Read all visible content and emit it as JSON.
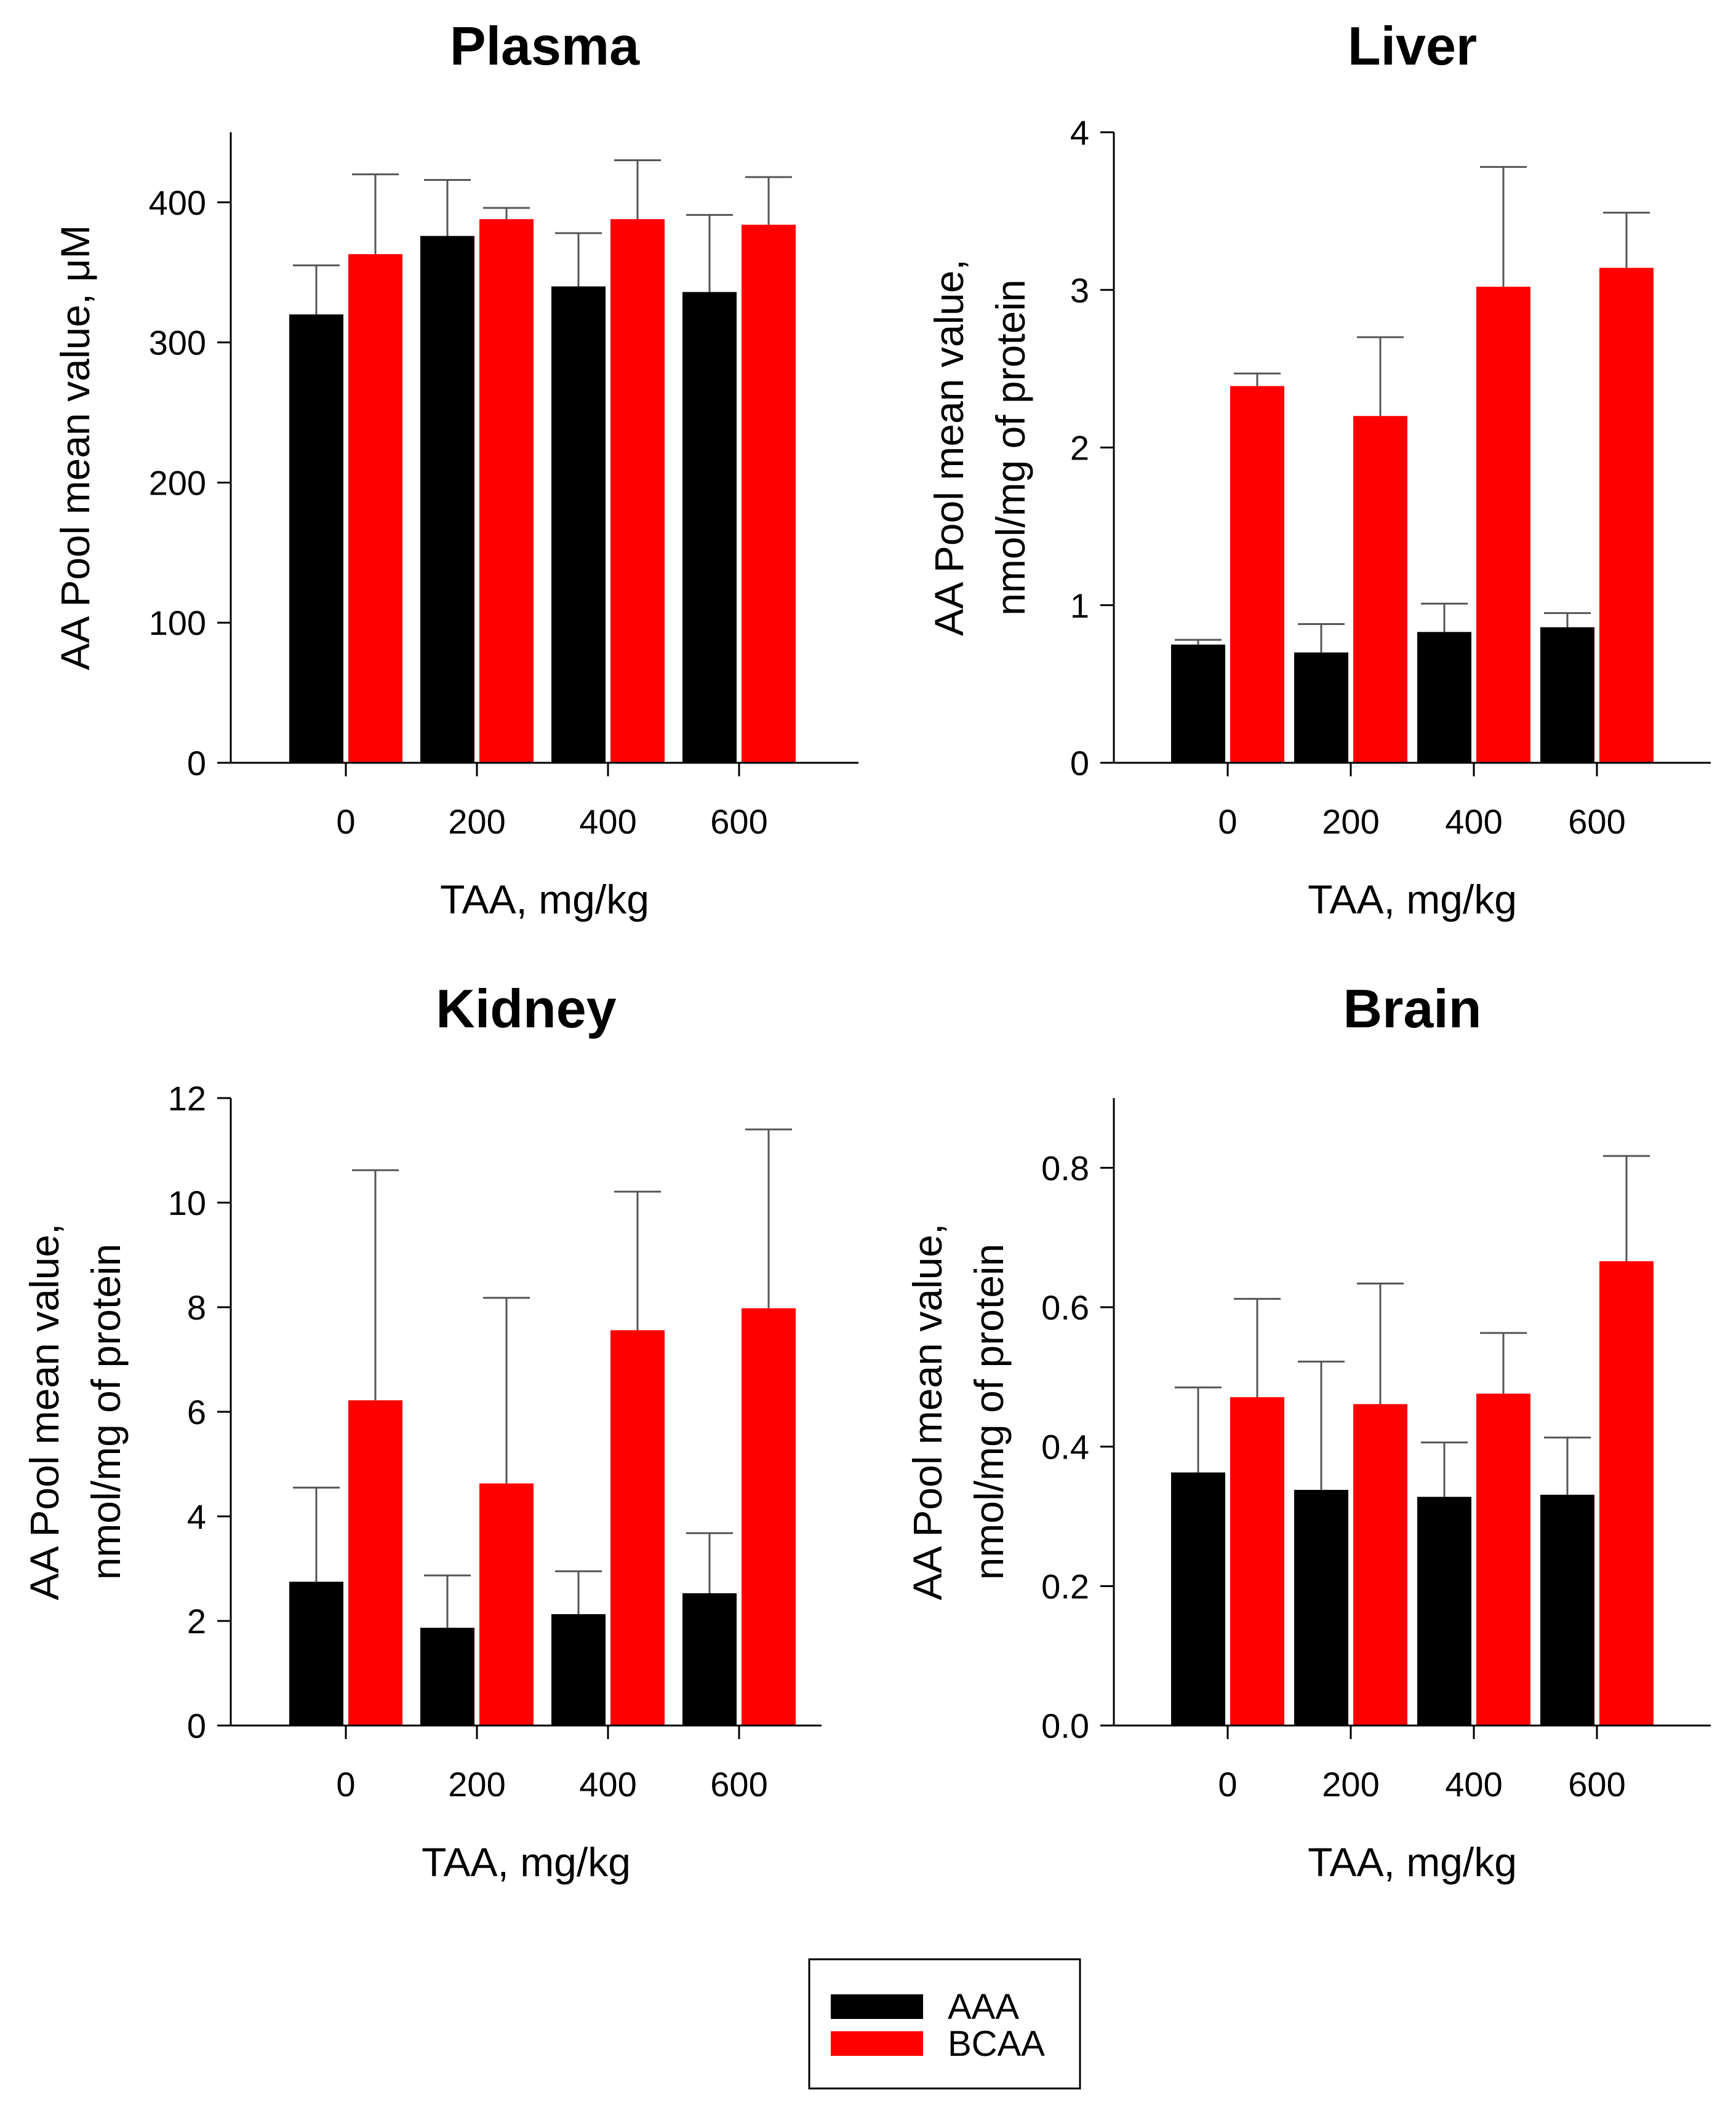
{
  "colors": {
    "AAA": "#000000",
    "BCAA": "#ff0000",
    "error_bar": "#555555",
    "axis": "#000000"
  },
  "legend": {
    "items": [
      {
        "name": "AAA",
        "color": "#000000"
      },
      {
        "name": "BCAA",
        "color": "#ff0000"
      }
    ]
  },
  "chart_data": [
    {
      "type": "bar",
      "title": "Plasma",
      "xlabel": "TAA, mg/kg",
      "ylabel": [
        "AA Pool mean value, μM"
      ],
      "categories": [
        "0",
        "200",
        "400",
        "600"
      ],
      "ylim": [
        0,
        450
      ],
      "yticks": [
        "0",
        "100",
        "200",
        "300",
        "400"
      ],
      "ytick_values": [
        0,
        100,
        200,
        300,
        400
      ],
      "series": [
        {
          "name": "AAA",
          "values": [
            320,
            376,
            340,
            336
          ],
          "errors": [
            35,
            40,
            38,
            55
          ]
        },
        {
          "name": "BCAA",
          "values": [
            363,
            388,
            388,
            384
          ],
          "errors": [
            57,
            8,
            42,
            34
          ]
        }
      ]
    },
    {
      "type": "bar",
      "title": "Liver",
      "xlabel": "TAA, mg/kg",
      "ylabel": [
        "AA Pool mean value,",
        "nmol/mg of protein"
      ],
      "categories": [
        "0",
        "200",
        "400",
        "600"
      ],
      "ylim": [
        0,
        4
      ],
      "yticks": [
        "0",
        "1",
        "2",
        "3",
        "4"
      ],
      "ytick_values": [
        0,
        1,
        2,
        3,
        4
      ],
      "series": [
        {
          "name": "AAA",
          "values": [
            0.75,
            0.7,
            0.83,
            0.86
          ],
          "errors": [
            0.03,
            0.18,
            0.18,
            0.09
          ]
        },
        {
          "name": "BCAA",
          "values": [
            2.39,
            2.2,
            3.02,
            3.14
          ],
          "errors": [
            0.08,
            0.5,
            0.76,
            0.35
          ]
        }
      ]
    },
    {
      "type": "bar",
      "title": "Kidney",
      "xlabel": "TAA, mg/kg",
      "ylabel": [
        "AA Pool mean value,",
        "nmol/mg of protein"
      ],
      "categories": [
        "0",
        "200",
        "400",
        "600"
      ],
      "ylim": [
        0,
        12
      ],
      "yticks": [
        "0",
        "2",
        "4",
        "6",
        "8",
        "10",
        "12"
      ],
      "ytick_values": [
        0,
        2,
        4,
        6,
        8,
        10,
        12
      ],
      "series": [
        {
          "name": "AAA",
          "values": [
            2.75,
            1.87,
            2.13,
            2.53
          ],
          "errors": [
            1.8,
            1.0,
            0.82,
            1.15
          ]
        },
        {
          "name": "BCAA",
          "values": [
            6.22,
            4.63,
            7.56,
            7.98
          ],
          "errors": [
            4.4,
            3.55,
            2.65,
            3.42
          ]
        }
      ]
    },
    {
      "type": "bar",
      "title": "Brain",
      "xlabel": "TAA, mg/kg",
      "ylabel": [
        "AA Pool mean value,",
        "nmol/mg of protein"
      ],
      "categories": [
        "0",
        "200",
        "400",
        "600"
      ],
      "ylim": [
        0,
        0.9
      ],
      "yticks": [
        "0.0",
        "0.2",
        "0.4",
        "0.6",
        "0.8"
      ],
      "ytick_values": [
        0,
        0.2,
        0.4,
        0.6,
        0.8
      ],
      "series": [
        {
          "name": "AAA",
          "values": [
            0.363,
            0.338,
            0.328,
            0.331
          ],
          "errors": [
            0.122,
            0.184,
            0.078,
            0.082
          ]
        },
        {
          "name": "BCAA",
          "values": [
            0.471,
            0.461,
            0.476,
            0.666
          ],
          "errors": [
            0.141,
            0.173,
            0.087,
            0.151
          ]
        }
      ]
    }
  ]
}
